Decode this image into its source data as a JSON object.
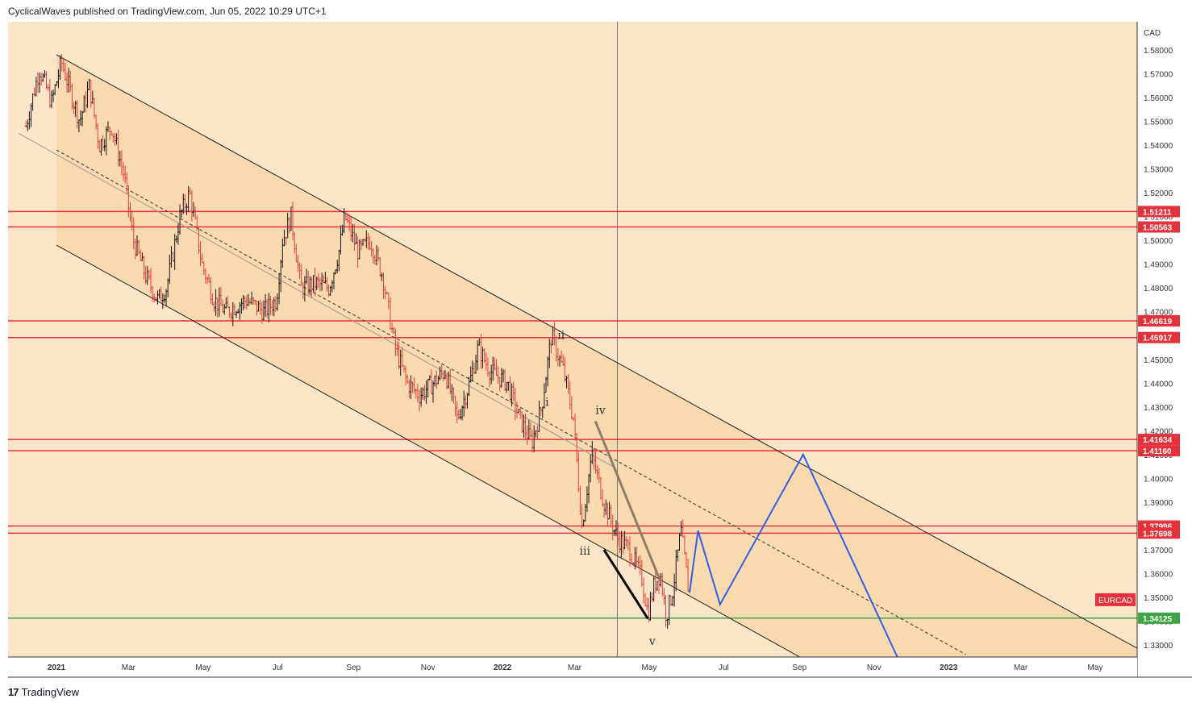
{
  "header": {
    "publisher_text": "CyclicalWaves published on TradingView.com, Jun 05, 2022 10:29 UTC+1"
  },
  "footer": {
    "brand": "TradingView",
    "logo_glyph": "17"
  },
  "colors": {
    "background": "#fbe5c8",
    "channel_fill": "#f9d9ae",
    "up_candle": "#131722",
    "down_candle": "#e0413c",
    "resistance_line": "#e5313b",
    "support_line": "#3fa544",
    "projection": "#2e5fe8",
    "wave_line_dark": "#000000",
    "wave_line_brown": "#8d7c6a"
  },
  "chart_data": {
    "type": "candlestick",
    "symbol_label": "EURCAD",
    "currency_label": "CAD",
    "y_axis": {
      "ticks": [
        1.33,
        1.34,
        1.35,
        1.36,
        1.37,
        1.38,
        1.39,
        1.4,
        1.41,
        1.42,
        1.43,
        1.44,
        1.45,
        1.46,
        1.47,
        1.48,
        1.49,
        1.5,
        1.51,
        1.52,
        1.53,
        1.54,
        1.55,
        1.56,
        1.57,
        1.58
      ],
      "tick_labels": [
        "1.33000",
        "1.34000",
        "1.35000",
        "1.36000",
        "1.37000",
        "1.38000",
        "1.39000",
        "1.40000",
        "1.41000",
        "1.42000",
        "1.43000",
        "1.44000",
        "1.45000",
        "1.46000",
        "1.47000",
        "1.48000",
        "1.49000",
        "1.50000",
        "1.51000",
        "1.52000",
        "1.53000",
        "1.54000",
        "1.55000",
        "1.56000",
        "1.57000",
        "1.58000"
      ]
    },
    "x_axis": {
      "ticks": [
        {
          "label": "2021",
          "date": "2021-01-01",
          "bold": true
        },
        {
          "label": "Mar",
          "date": "2021-03-01"
        },
        {
          "label": "May",
          "date": "2021-05-01"
        },
        {
          "label": "Jul",
          "date": "2021-07-01"
        },
        {
          "label": "Sep",
          "date": "2021-09-01"
        },
        {
          "label": "Nov",
          "date": "2021-11-01"
        },
        {
          "label": "2022",
          "date": "2022-01-01",
          "bold": true
        },
        {
          "label": "Mar",
          "date": "2022-03-01"
        },
        {
          "label": "May",
          "date": "2022-05-01"
        },
        {
          "label": "Jul",
          "date": "2022-07-01"
        },
        {
          "label": "Sep",
          "date": "2022-09-01"
        },
        {
          "label": "Nov",
          "date": "2022-11-01"
        },
        {
          "label": "2023",
          "date": "2023-01-01",
          "bold": true
        },
        {
          "label": "Mar",
          "date": "2023-03-01"
        },
        {
          "label": "May",
          "date": "2023-05-01"
        }
      ]
    },
    "price_path": [
      [
        "2020-12-07",
        1.548
      ],
      [
        "2020-12-18",
        1.572
      ],
      [
        "2020-12-28",
        1.558
      ],
      [
        "2021-01-05",
        1.575
      ],
      [
        "2021-01-20",
        1.55
      ],
      [
        "2021-01-28",
        1.565
      ],
      [
        "2021-02-05",
        1.54
      ],
      [
        "2021-02-15",
        1.548
      ],
      [
        "2021-02-25",
        1.528
      ],
      [
        "2021-03-05",
        1.5
      ],
      [
        "2021-03-15",
        1.485
      ],
      [
        "2021-03-25",
        1.475
      ],
      [
        "2021-04-01",
        1.48
      ],
      [
        "2021-04-12",
        1.51
      ],
      [
        "2021-04-20",
        1.52
      ],
      [
        "2021-04-30",
        1.49
      ],
      [
        "2021-05-10",
        1.475
      ],
      [
        "2021-05-20",
        1.47
      ],
      [
        "2021-06-05",
        1.475
      ],
      [
        "2021-06-20",
        1.47
      ],
      [
        "2021-06-30",
        1.475
      ],
      [
        "2021-07-05",
        1.5
      ],
      [
        "2021-07-12",
        1.51
      ],
      [
        "2021-07-20",
        1.48
      ],
      [
        "2021-08-01",
        1.482
      ],
      [
        "2021-08-12",
        1.48
      ],
      [
        "2021-08-20",
        1.495
      ],
      [
        "2021-08-25",
        1.51
      ],
      [
        "2021-09-05",
        1.495
      ],
      [
        "2021-09-15",
        1.5
      ],
      [
        "2021-09-25",
        1.485
      ],
      [
        "2021-10-05",
        1.455
      ],
      [
        "2021-10-15",
        1.44
      ],
      [
        "2021-10-25",
        1.435
      ],
      [
        "2021-11-05",
        1.44
      ],
      [
        "2021-11-15",
        1.445
      ],
      [
        "2021-11-25",
        1.425
      ],
      [
        "2021-12-05",
        1.44
      ],
      [
        "2021-12-12",
        1.455
      ],
      [
        "2021-12-22",
        1.445
      ],
      [
        "2022-01-05",
        1.44
      ],
      [
        "2022-01-15",
        1.425
      ],
      [
        "2022-01-25",
        1.415
      ],
      [
        "2022-02-02",
        1.43
      ],
      [
        "2022-02-10",
        1.46
      ],
      [
        "2022-02-20",
        1.445
      ],
      [
        "2022-02-28",
        1.425
      ],
      [
        "2022-03-07",
        1.38
      ],
      [
        "2022-03-15",
        1.41
      ],
      [
        "2022-03-25",
        1.39
      ],
      [
        "2022-04-05",
        1.375
      ],
      [
        "2022-04-15",
        1.37
      ],
      [
        "2022-04-25",
        1.358
      ],
      [
        "2022-04-30",
        1.343
      ],
      [
        "2022-05-05",
        1.355
      ],
      [
        "2022-05-10",
        1.36
      ],
      [
        "2022-05-15",
        1.342
      ],
      [
        "2022-05-20",
        1.352
      ],
      [
        "2022-05-27",
        1.378
      ],
      [
        "2022-06-03",
        1.35
      ]
    ],
    "horizontal_levels": [
      {
        "value": 1.51211,
        "label": "1.51211",
        "color": "#e5313b"
      },
      {
        "value": 1.50563,
        "label": "1.50563",
        "color": "#e5313b"
      },
      {
        "value": 1.46619,
        "label": "1.46619",
        "color": "#e5313b"
      },
      {
        "value": 1.45917,
        "label": "1.45917",
        "color": "#e5313b"
      },
      {
        "value": 1.41634,
        "label": "1.41634",
        "color": "#e5313b"
      },
      {
        "value": 1.4116,
        "label": "1.41160",
        "color": "#e5313b"
      },
      {
        "value": 1.37996,
        "label": "1.37996",
        "color": "#e5313b"
      },
      {
        "value": 1.37698,
        "label": "1.37698",
        "color": "#e5313b"
      },
      {
        "value": 1.34125,
        "label": "1.34125",
        "color": "#3fa544"
      }
    ],
    "channel": {
      "upper": [
        [
          "2021-01-01",
          1.578
        ],
        [
          "2023-06-10",
          1.327
        ]
      ],
      "lower": [
        [
          "2021-01-01",
          1.498
        ],
        [
          "2022-09-01",
          1.325
        ]
      ],
      "middle": [
        [
          "2021-01-01",
          1.538
        ],
        [
          "2023-01-15",
          1.326
        ]
      ],
      "trend_gray": [
        [
          "2020-12-01",
          1.545
        ],
        [
          "2022-04-01",
          1.405
        ]
      ]
    },
    "projection_path": [
      [
        "2022-06-03",
        1.352
      ],
      [
        "2022-06-10",
        1.378
      ],
      [
        "2022-06-28",
        1.347
      ],
      [
        "2022-09-04",
        1.41
      ],
      [
        "2022-11-20",
        1.325
      ]
    ],
    "wave_lines": [
      {
        "color": "#8d7c6a",
        "points": [
          [
            "2022-03-18",
            1.424
          ],
          [
            "2022-05-10",
            1.357
          ]
        ]
      },
      {
        "color": "#000000",
        "points": [
          [
            "2022-03-25",
            1.37
          ],
          [
            "2022-04-30",
            1.341
          ]
        ]
      }
    ],
    "vertical_marker_date": "2022-04-05",
    "wave_labels": [
      {
        "text": "ii",
        "date": "2022-02-15",
        "value": 1.4585
      },
      {
        "text": "i",
        "date": "2022-02-05",
        "value": 1.4305
      },
      {
        "text": "iv",
        "date": "2022-03-18",
        "value": 1.427
      },
      {
        "text": "iii",
        "date": "2022-03-05",
        "value": 1.368
      },
      {
        "text": "v",
        "date": "2022-05-01",
        "value": 1.33
      }
    ],
    "last_price_label": "EURCAD"
  }
}
